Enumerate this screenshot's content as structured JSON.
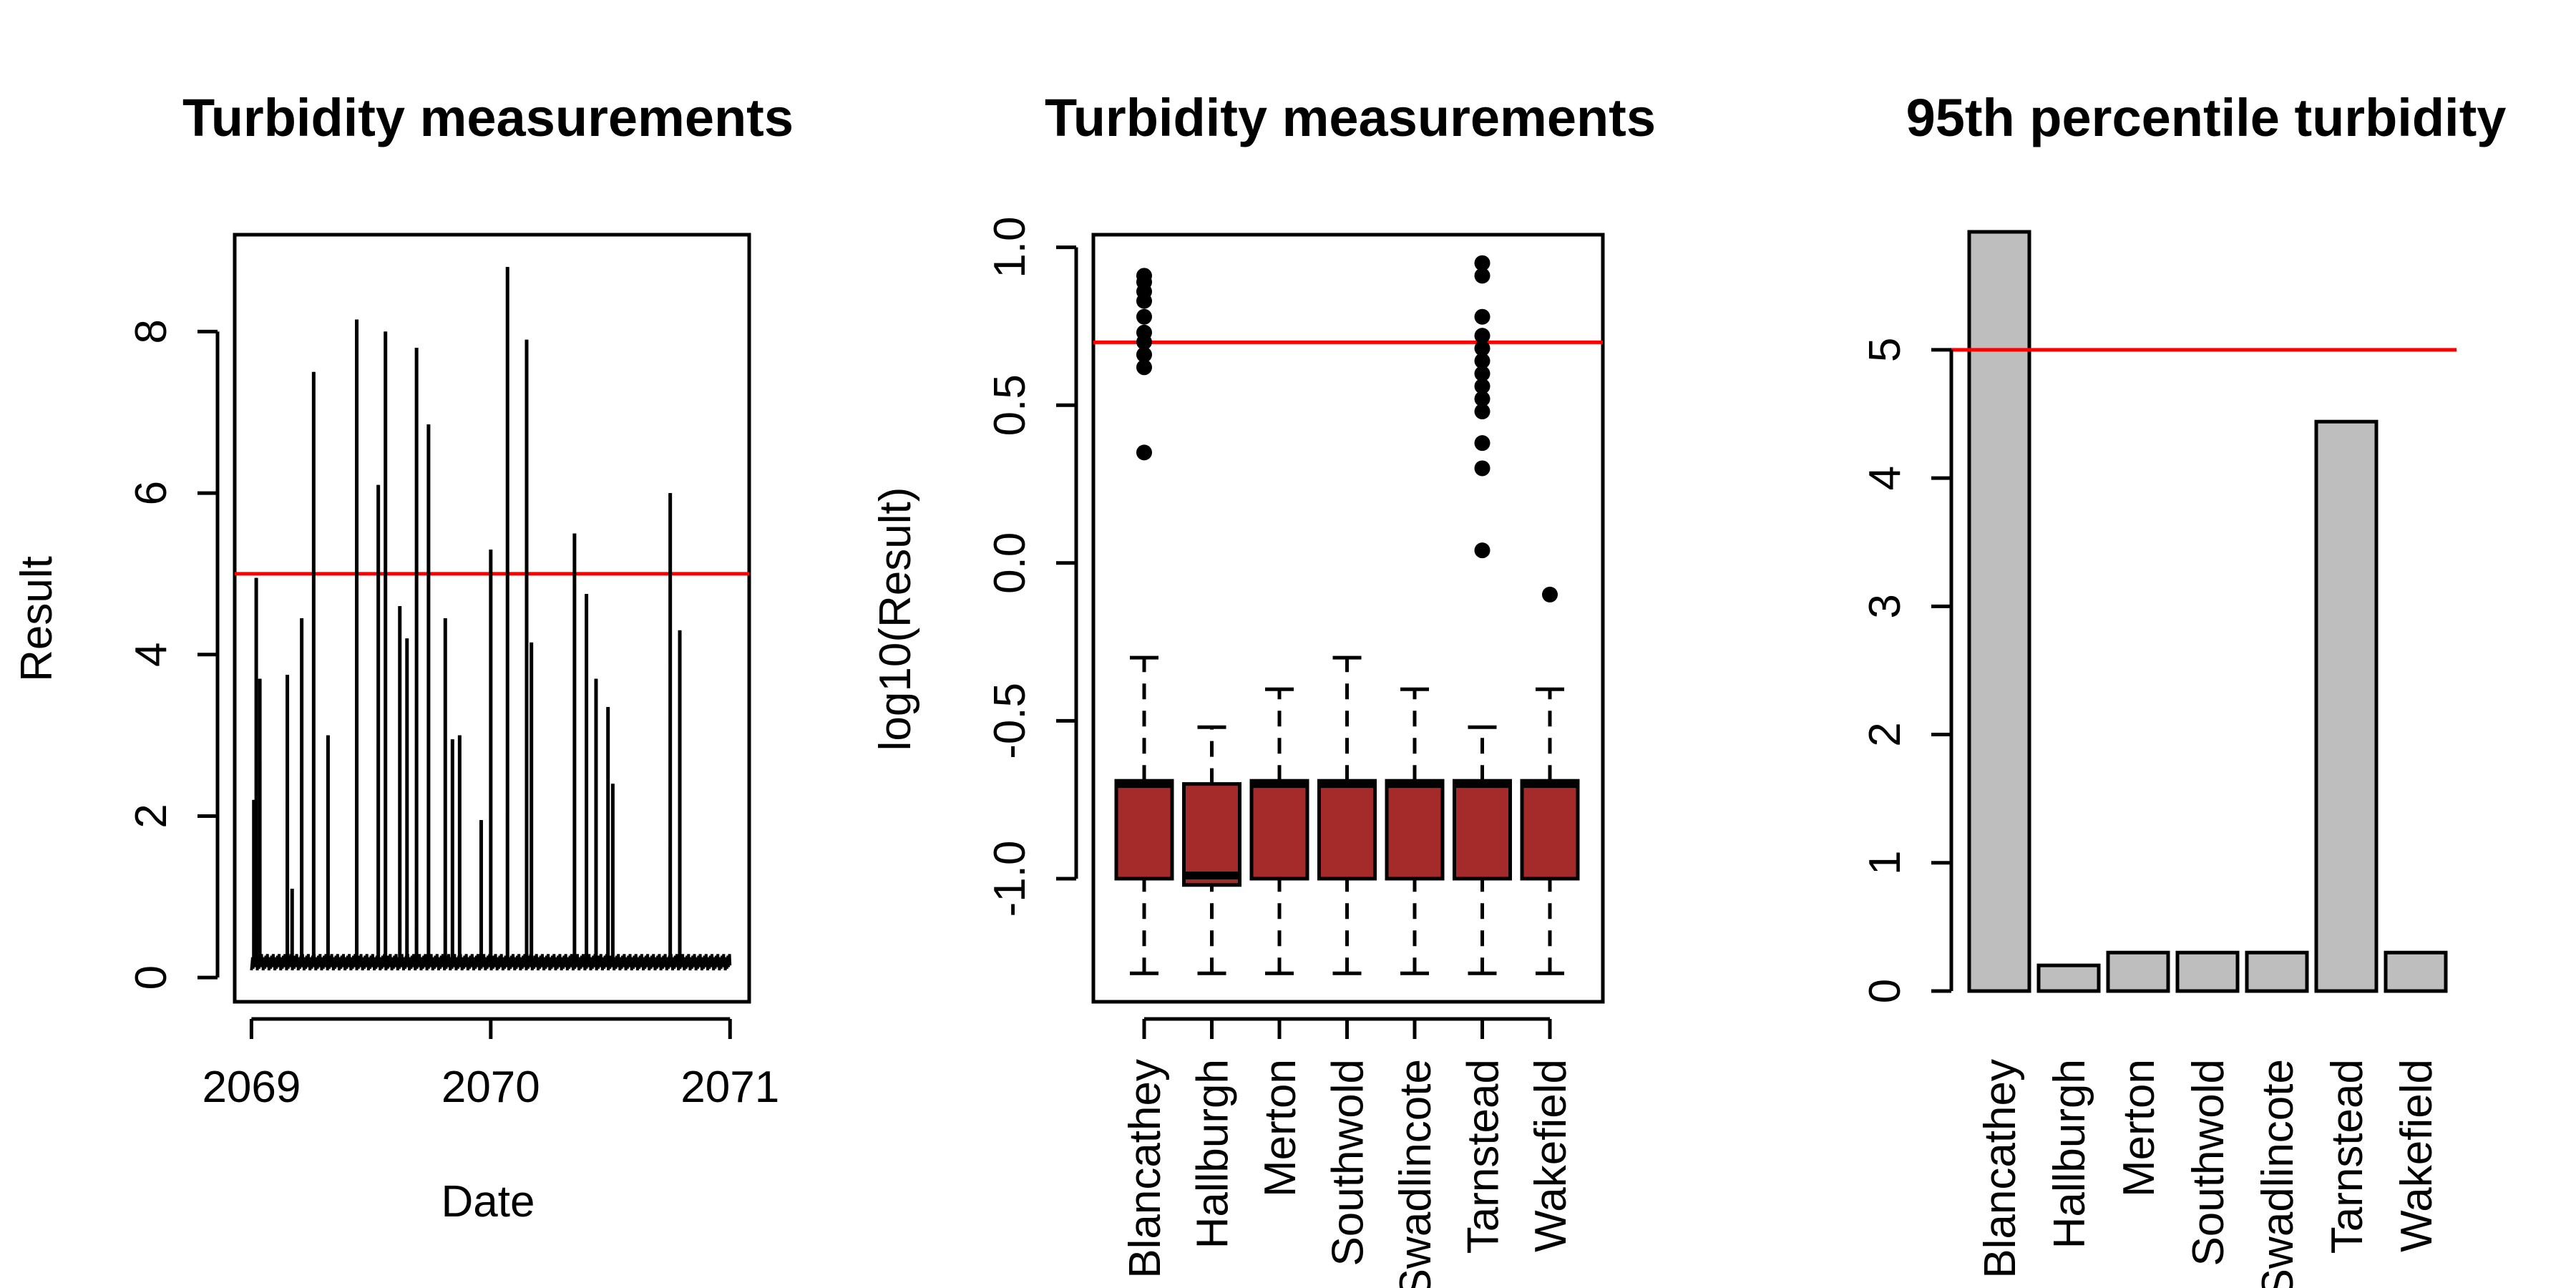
{
  "chart_data": [
    {
      "type": "line",
      "title": "Turbidity measurements",
      "xlabel": "Date",
      "ylabel": "Result",
      "x_ticks": [
        2069,
        2070,
        2071
      ],
      "x_tick_labels": [
        "2069",
        "2070",
        "2071"
      ],
      "y_ticks": [
        0,
        2,
        4,
        6,
        8
      ],
      "y_tick_labels": [
        "0",
        "2",
        "4",
        "6",
        "8"
      ],
      "xlim": [
        2068.93,
        2071.08
      ],
      "ylim": [
        -0.3,
        9.2
      ],
      "reference_line": {
        "value": 5,
        "color": "#ff0000"
      },
      "baseline": 0.2,
      "spikes": [
        {
          "x": 2069.01,
          "y": 2.2
        },
        {
          "x": 2069.02,
          "y": 4.95
        },
        {
          "x": 2069.035,
          "y": 3.7
        },
        {
          "x": 2069.15,
          "y": 3.75
        },
        {
          "x": 2069.17,
          "y": 1.1
        },
        {
          "x": 2069.21,
          "y": 4.45
        },
        {
          "x": 2069.26,
          "y": 7.5
        },
        {
          "x": 2069.32,
          "y": 3.0
        },
        {
          "x": 2069.44,
          "y": 8.15
        },
        {
          "x": 2069.53,
          "y": 6.1
        },
        {
          "x": 2069.56,
          "y": 8.0
        },
        {
          "x": 2069.62,
          "y": 4.6
        },
        {
          "x": 2069.65,
          "y": 4.2
        },
        {
          "x": 2069.69,
          "y": 7.8
        },
        {
          "x": 2069.74,
          "y": 6.85
        },
        {
          "x": 2069.81,
          "y": 4.45
        },
        {
          "x": 2069.84,
          "y": 2.95
        },
        {
          "x": 2069.87,
          "y": 3.0
        },
        {
          "x": 2069.96,
          "y": 1.95
        },
        {
          "x": 2070.0,
          "y": 5.3
        },
        {
          "x": 2070.07,
          "y": 8.8
        },
        {
          "x": 2070.15,
          "y": 7.9
        },
        {
          "x": 2070.17,
          "y": 4.15
        },
        {
          "x": 2070.35,
          "y": 5.5
        },
        {
          "x": 2070.4,
          "y": 4.75
        },
        {
          "x": 2070.44,
          "y": 3.7
        },
        {
          "x": 2070.49,
          "y": 3.35
        },
        {
          "x": 2070.51,
          "y": 2.4
        },
        {
          "x": 2070.75,
          "y": 6.0
        },
        {
          "x": 2070.79,
          "y": 4.3
        }
      ]
    },
    {
      "type": "box",
      "title": "Turbidity measurements",
      "xlabel": "",
      "ylabel": "log10(Result)",
      "categories": [
        "Blancathey",
        "Hallburgh",
        "Merton",
        "Southwold",
        "Swadlincote",
        "Tarnstead",
        "Wakefield"
      ],
      "y_ticks": [
        -1.0,
        -0.5,
        0.0,
        0.5,
        1.0
      ],
      "y_tick_labels": [
        "-1.0",
        "-0.5",
        "0.0",
        "0.5",
        "1.0"
      ],
      "ylim": [
        -1.39,
        1.04
      ],
      "box_color": "#a52a2a",
      "reference_line": {
        "value": 0.699,
        "color": "#ff0000"
      },
      "boxes": [
        {
          "whisker_low": -1.3,
          "q1": -1.0,
          "median": -0.7,
          "q3": -0.69,
          "whisker_high": -0.3,
          "outliers": [
            0.35,
            0.62,
            0.66,
            0.7,
            0.73,
            0.78,
            0.83,
            0.86,
            0.89,
            0.91
          ]
        },
        {
          "whisker_low": -1.3,
          "q1": -1.02,
          "median": -0.99,
          "q3": -0.7,
          "whisker_high": -0.52,
          "outliers": []
        },
        {
          "whisker_low": -1.3,
          "q1": -1.0,
          "median": -0.7,
          "q3": -0.69,
          "whisker_high": -0.4,
          "outliers": []
        },
        {
          "whisker_low": -1.3,
          "q1": -1.0,
          "median": -0.7,
          "q3": -0.69,
          "whisker_high": -0.3,
          "outliers": []
        },
        {
          "whisker_low": -1.3,
          "q1": -1.0,
          "median": -0.7,
          "q3": -0.69,
          "whisker_high": -0.4,
          "outliers": []
        },
        {
          "whisker_low": -1.3,
          "q1": -1.0,
          "median": -0.7,
          "q3": -0.69,
          "whisker_high": -0.52,
          "outliers": [
            0.04,
            0.3,
            0.38,
            0.48,
            0.52,
            0.56,
            0.6,
            0.64,
            0.68,
            0.72,
            0.78,
            0.91,
            0.95
          ]
        },
        {
          "whisker_low": -1.3,
          "q1": -1.0,
          "median": -0.7,
          "q3": -0.69,
          "whisker_high": -0.4,
          "outliers": [
            -0.1
          ]
        }
      ]
    },
    {
      "type": "bar",
      "title": "95th percentile turbidity",
      "xlabel": "",
      "ylabel": "",
      "categories": [
        "Blancathey",
        "Hallburgh",
        "Merton",
        "Southwold",
        "Swadlincote",
        "Tarnstead",
        "Wakefield"
      ],
      "values": [
        5.92,
        0.2,
        0.3,
        0.3,
        0.3,
        4.44,
        0.3
      ],
      "y_ticks": [
        0,
        1,
        2,
        3,
        4,
        5
      ],
      "y_tick_labels": [
        "0",
        "1",
        "2",
        "3",
        "4",
        "5"
      ],
      "ylim": [
        0,
        5.92
      ],
      "bar_color": "#bebebe",
      "reference_line": {
        "value": 5,
        "color": "#ff0000"
      }
    }
  ]
}
